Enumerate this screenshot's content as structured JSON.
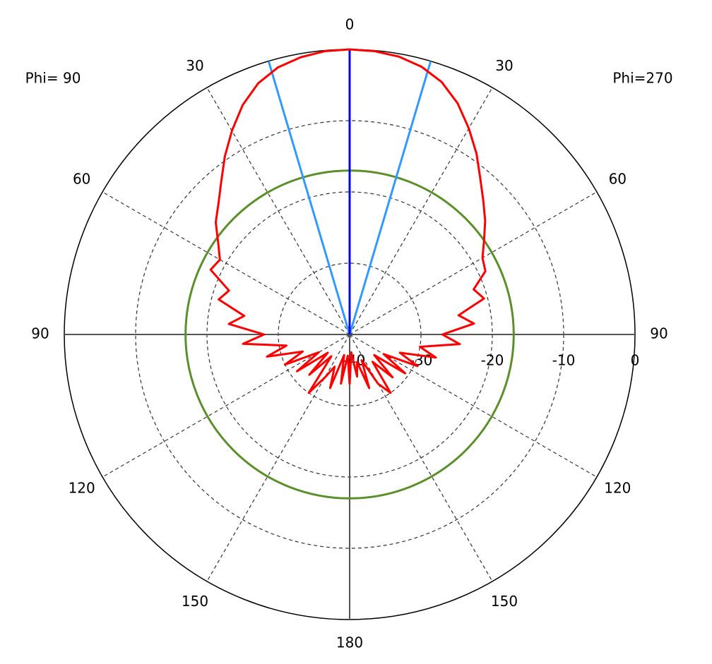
{
  "chart_data": {
    "type": "polar",
    "left_label": "Phi= 90",
    "right_label": "Phi=270",
    "theta": [
      -180,
      -175,
      -170,
      -165,
      -160,
      -155,
      -150,
      -145,
      -140,
      -135,
      -130,
      -125,
      -120,
      -115,
      -110,
      -105,
      -100,
      -95,
      -90,
      -85,
      -80,
      -75,
      -70,
      -65,
      -60,
      -55,
      -50,
      -45,
      -40,
      -35,
      -30,
      -25,
      -20,
      -15,
      -10,
      -5,
      0,
      5,
      10,
      15,
      20,
      25,
      30,
      35,
      40,
      45,
      50,
      55,
      60,
      65,
      70,
      75,
      80,
      85,
      90,
      95,
      100,
      105,
      110,
      115,
      120,
      125,
      130,
      135,
      140,
      145,
      150,
      155,
      160,
      165,
      170,
      175,
      180
    ],
    "series": [
      {
        "color": "#ff0000",
        "values": [
          -33,
          -37,
          -33,
          -37,
          -32,
          -35,
          -33,
          -30,
          -36,
          -32,
          -36,
          -31,
          -35,
          -30,
          -33,
          -28,
          -31,
          -25,
          -28,
          -23,
          -25,
          -21,
          -22,
          -18.5,
          -19,
          -17.5,
          -15.5,
          -14,
          -12,
          -9.5,
          -7,
          -4.5,
          -2.5,
          -1.2,
          -0.5,
          -0.1,
          0,
          -0.1,
          -0.4,
          -1.1,
          -2.3,
          -4.2,
          -6.6,
          -9,
          -11.5,
          -13.5,
          -15.2,
          -17,
          -18.5,
          -19,
          -21.5,
          -20.5,
          -24.5,
          -22.5,
          -27,
          -24.5,
          -30,
          -27.5,
          -32.5,
          -29.5,
          -34.5,
          -30.5,
          -35.5,
          -31.5,
          -35,
          -30,
          -32,
          -36,
          -32,
          -36,
          -34,
          -37.5,
          -33
        ]
      }
    ],
    "main_direction": {
      "angle": 0,
      "color": "#0000ff"
    },
    "beamwidth": {
      "angles": [
        -16.5,
        16.5
      ],
      "color": "#3399ff"
    },
    "level_circle": {
      "value": -17,
      "color": "#5a8f29"
    },
    "rlim": [
      -40,
      0
    ],
    "rticks": [
      -40,
      -30,
      -20,
      -10,
      0
    ],
    "thetaticks": [
      {
        "value": -150,
        "label": "150"
      },
      {
        "value": -120,
        "label": "120"
      },
      {
        "value": -90,
        "label": "90"
      },
      {
        "value": -60,
        "label": "60"
      },
      {
        "value": -30,
        "label": "30"
      },
      0,
      30,
      60,
      90,
      120,
      150,
      180
    ],
    "grid": true
  }
}
